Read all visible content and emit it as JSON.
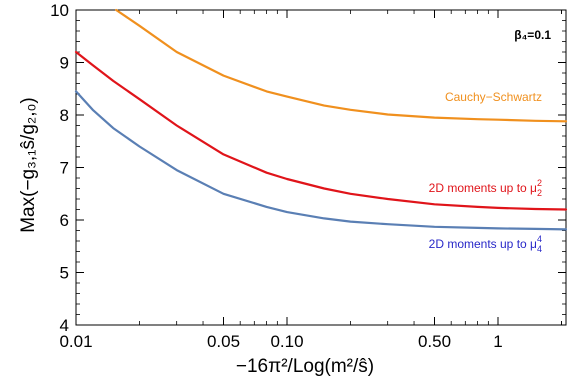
{
  "chart_data": {
    "type": "line",
    "xscale": "log",
    "xlim": [
      0.01,
      2.1
    ],
    "ylim": [
      4,
      10
    ],
    "xticks": [
      {
        "value": 0.01,
        "label": "0.01"
      },
      {
        "value": 0.05,
        "label": "0.05"
      },
      {
        "value": 0.1,
        "label": "0.10"
      },
      {
        "value": 0.5,
        "label": "0.50"
      },
      {
        "value": 1,
        "label": "1"
      }
    ],
    "yticks": [
      {
        "value": 4,
        "label": "4"
      },
      {
        "value": 5,
        "label": "5"
      },
      {
        "value": 6,
        "label": "6"
      },
      {
        "value": 7,
        "label": "7"
      },
      {
        "value": 8,
        "label": "8"
      },
      {
        "value": 9,
        "label": "9"
      },
      {
        "value": 10,
        "label": "10"
      }
    ],
    "xlabel": "−16π²/Log(m²/ŝ)",
    "ylabel": "Max(−g₃,₁ŝ/g₂,₀)",
    "parameter_label": "β₄=0.1",
    "series": [
      {
        "name": "Cauchy−Schwartz",
        "color": "#f0901e",
        "x": [
          0.0155,
          0.02,
          0.03,
          0.05,
          0.08,
          0.1,
          0.15,
          0.2,
          0.3,
          0.5,
          0.8,
          1,
          1.5,
          2.1
        ],
        "y": [
          10.0,
          9.7,
          9.2,
          8.75,
          8.45,
          8.35,
          8.18,
          8.1,
          8.01,
          7.95,
          7.92,
          7.91,
          7.89,
          7.88
        ]
      },
      {
        "name": "2D moments up to μ₂²",
        "color": "#e0141a",
        "x": [
          0.01,
          0.012,
          0.015,
          0.02,
          0.03,
          0.05,
          0.08,
          0.1,
          0.15,
          0.2,
          0.3,
          0.5,
          0.8,
          1,
          1.5,
          2.1
        ],
        "y": [
          9.2,
          8.95,
          8.65,
          8.3,
          7.8,
          7.25,
          6.9,
          6.78,
          6.6,
          6.5,
          6.4,
          6.3,
          6.25,
          6.23,
          6.21,
          6.2
        ],
        "label_main": "2D moments up to ",
        "label_sym": "μ",
        "label_sup": "2",
        "label_sub": "2"
      },
      {
        "name": "2D moments up to μ₄⁴",
        "color": "#5a7fb4",
        "x": [
          0.01,
          0.012,
          0.015,
          0.02,
          0.03,
          0.05,
          0.08,
          0.1,
          0.15,
          0.2,
          0.3,
          0.5,
          0.8,
          1,
          1.5,
          2.1
        ],
        "y": [
          8.45,
          8.1,
          7.75,
          7.4,
          6.95,
          6.5,
          6.25,
          6.15,
          6.03,
          5.97,
          5.92,
          5.87,
          5.85,
          5.84,
          5.83,
          5.82
        ],
        "label_main": "2D moments up to ",
        "label_sym": "μ",
        "label_sup": "4",
        "label_sub": "4"
      }
    ],
    "annotations": [
      {
        "text": "Cauchy−Schwartz",
        "color": "#f0901e"
      },
      {
        "text": "2D moments up to μ₂²",
        "color": "#e0141a"
      },
      {
        "text": "2D moments up to μ₄⁴",
        "color": "#2828c8"
      }
    ]
  }
}
